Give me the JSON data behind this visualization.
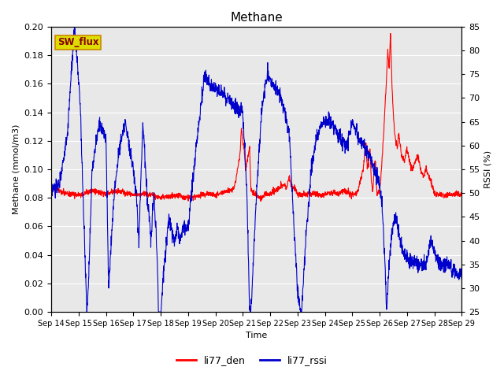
{
  "title": "Methane",
  "ylabel_left": "Methane (mmol/m3)",
  "ylabel_right": "RSSI (%)",
  "xlabel": "Time",
  "ylim_left": [
    0.0,
    0.2
  ],
  "ylim_right": [
    25,
    85
  ],
  "yticks_left": [
    0.0,
    0.02,
    0.04,
    0.06,
    0.08,
    0.1,
    0.12,
    0.14,
    0.16,
    0.18,
    0.2
  ],
  "yticks_right": [
    25,
    30,
    35,
    40,
    45,
    50,
    55,
    60,
    65,
    70,
    75,
    80,
    85
  ],
  "xtick_labels": [
    "Sep 14",
    "Sep 15",
    "Sep 16",
    "Sep 17",
    "Sep 18",
    "Sep 19",
    "Sep 20",
    "Sep 21",
    "Sep 22",
    "Sep 23",
    "Sep 24",
    "Sep 25",
    "Sep 26",
    "Sep 27",
    "Sep 28",
    "Sep 29"
  ],
  "color_red": "#ff0000",
  "color_blue": "#0000cc",
  "background_color": "#e8e8e8",
  "legend_label_red": "li77_den",
  "legend_label_blue": "li77_rssi",
  "annotation_text": "SW_flux",
  "annotation_bg": "#dddd00",
  "annotation_border": "#cc8800",
  "annotation_text_color": "#880000"
}
